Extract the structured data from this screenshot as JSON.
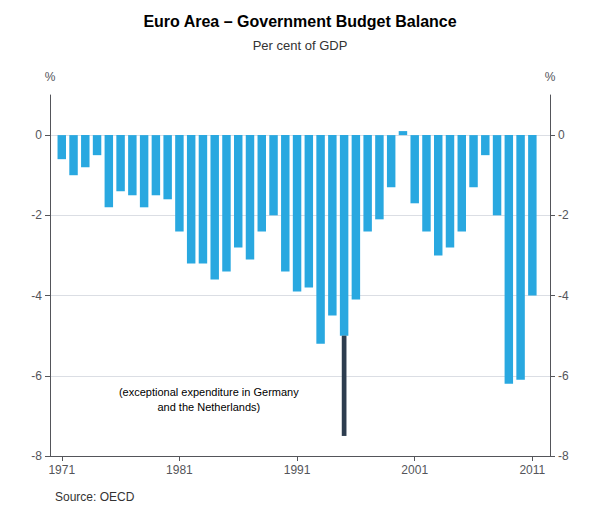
{
  "chart_data": {
    "type": "bar",
    "title": "Euro Area – Government Budget Balance",
    "subtitle": "Per cent of GDP",
    "source": "Source: OECD",
    "ylabel": "%",
    "y2label": "%",
    "x": [
      1971,
      1972,
      1973,
      1974,
      1975,
      1976,
      1977,
      1978,
      1979,
      1980,
      1981,
      1982,
      1983,
      1984,
      1985,
      1986,
      1987,
      1988,
      1989,
      1990,
      1991,
      1992,
      1993,
      1994,
      1995,
      1996,
      1997,
      1998,
      1999,
      2000,
      2001,
      2002,
      2003,
      2004,
      2005,
      2006,
      2007,
      2008,
      2009,
      2010,
      2011
    ],
    "values": [
      -0.6,
      -1.0,
      -0.8,
      -0.5,
      -1.8,
      -1.4,
      -1.5,
      -1.8,
      -1.5,
      -1.6,
      -2.4,
      -3.2,
      -3.2,
      -3.6,
      -3.4,
      -2.8,
      -3.1,
      -2.4,
      -2.0,
      -3.4,
      -3.9,
      -3.8,
      -5.2,
      -4.5,
      -5.0,
      -4.1,
      -2.4,
      -2.1,
      -1.3,
      0.1,
      -1.7,
      -2.4,
      -3.0,
      -2.8,
      -2.4,
      -1.3,
      -0.5,
      -2.0,
      -6.2,
      -6.1,
      -4.0
    ],
    "color": "#29a8e0",
    "extra_bar": {
      "x": 1995,
      "bottom": -5.0,
      "top": -7.5,
      "color": "#2d3d4f"
    },
    "annotation": {
      "text": "(exceptional expenditure in Germany\nand the Netherlands)",
      "x": 1983.5,
      "y": -6.6
    },
    "xlim": [
      1970.0,
      2012.5
    ],
    "xticks": [
      1971,
      1981,
      1991,
      2001,
      2011
    ],
    "ylim": [
      -8,
      1
    ],
    "yticks": [
      0,
      -2,
      -4,
      -6,
      -8
    ],
    "y2lim": [
      -8,
      1
    ],
    "y2ticks": [
      0,
      -2,
      -4,
      -6,
      -8
    ],
    "grid": true
  }
}
